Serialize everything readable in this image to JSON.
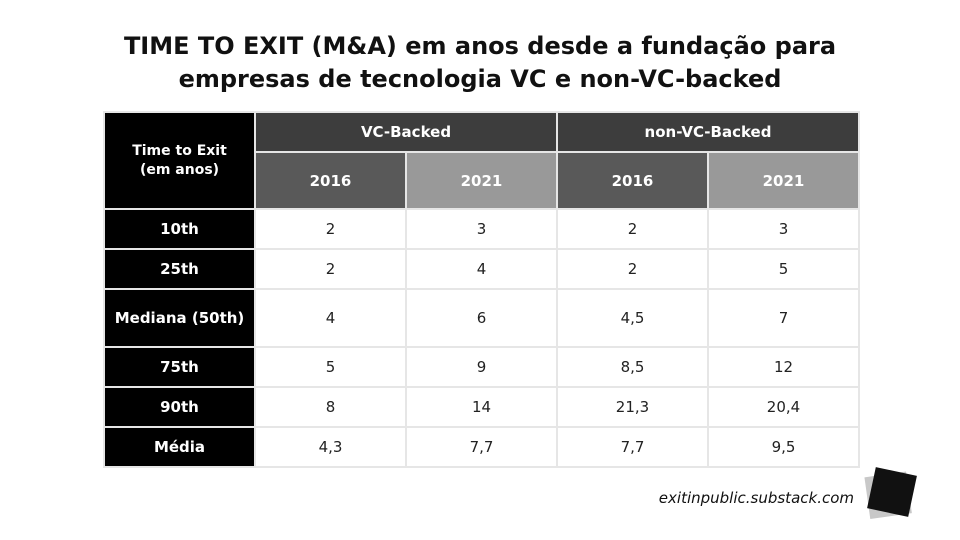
{
  "title_line1": "TIME TO EXIT (M&A) em anos desde a fundação para",
  "title_line2": "empresas de tecnologia VC e non-VC-backed",
  "footer": "exitinpublic.substack.com",
  "logo_icon": "tilted-square-logo-icon",
  "colors": {
    "header_dark": "#3d3d3d",
    "year_dark": "#595959",
    "year_light": "#999999",
    "row_header": "#000000"
  },
  "chart_data": {
    "type": "table",
    "corner_header": "Time to Exit (em anos)",
    "groups": [
      "VC-Backed",
      "non-VC-Backed"
    ],
    "years": [
      "2016",
      "2021",
      "2016",
      "2021"
    ],
    "rows": [
      {
        "label": "10th",
        "values": [
          "2",
          "3",
          "2",
          "3"
        ]
      },
      {
        "label": "25th",
        "values": [
          "2",
          "4",
          "2",
          "5"
        ]
      },
      {
        "label": "Mediana (50th)",
        "values": [
          "4",
          "6",
          "4,5",
          "7"
        ]
      },
      {
        "label": "75th",
        "values": [
          "5",
          "9",
          "8,5",
          "12"
        ]
      },
      {
        "label": "90th",
        "values": [
          "8",
          "14",
          "21,3",
          "20,4"
        ]
      },
      {
        "label": "Média",
        "values": [
          "4,3",
          "7,7",
          "7,7",
          "9,5"
        ]
      }
    ]
  }
}
